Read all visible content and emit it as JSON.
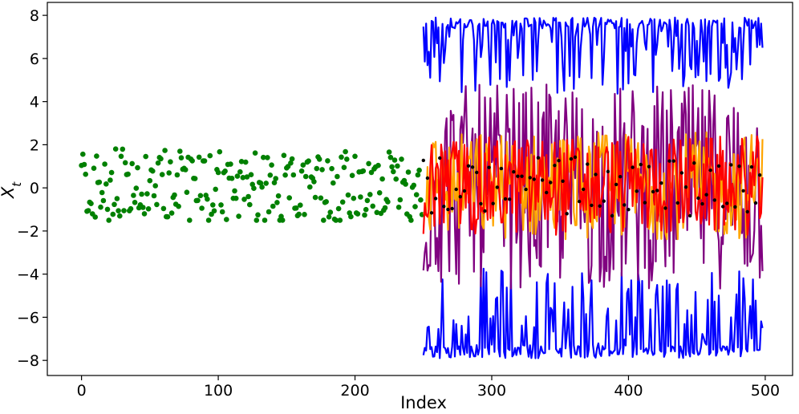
{
  "chart_data": {
    "type": "line",
    "title": "",
    "xlabel": "Index",
    "ylabel": "X_t",
    "xlim": [
      -25,
      520
    ],
    "ylim": [
      -8.7,
      8.6
    ],
    "xticks": [
      0,
      100,
      200,
      300,
      400,
      500
    ],
    "yticks": [
      -8,
      -6,
      -4,
      -2,
      0,
      2,
      4,
      6,
      8
    ],
    "grid": false,
    "legend": "none",
    "observed": {
      "marker": "scatter",
      "color": "#008000",
      "x_range": [
        0,
        249
      ],
      "y_approx_range": [
        -1.5,
        2.0
      ],
      "note_values": "bimodal points clustered near -1.2 and +1.2 with spread between"
    },
    "forecast": {
      "x_range": [
        250,
        498
      ],
      "series": [
        {
          "color": "#0000ff",
          "y_approx_range": [
            4.3,
            7.9
          ]
        },
        {
          "color": "#0000ff",
          "y_approx_range": [
            -7.9,
            -3.7
          ]
        },
        {
          "color": "#800080",
          "y_approx_range": [
            -4.7,
            4.8
          ]
        },
        {
          "color": "#ffa500",
          "y_approx_range": [
            -2.4,
            2.6
          ]
        },
        {
          "color": "#ff0000",
          "y_approx_range": [
            -2.2,
            2.4
          ]
        },
        {
          "color": "#000000",
          "marker": "dot",
          "y_approx_range": [
            -1.3,
            1.5
          ]
        }
      ]
    }
  }
}
